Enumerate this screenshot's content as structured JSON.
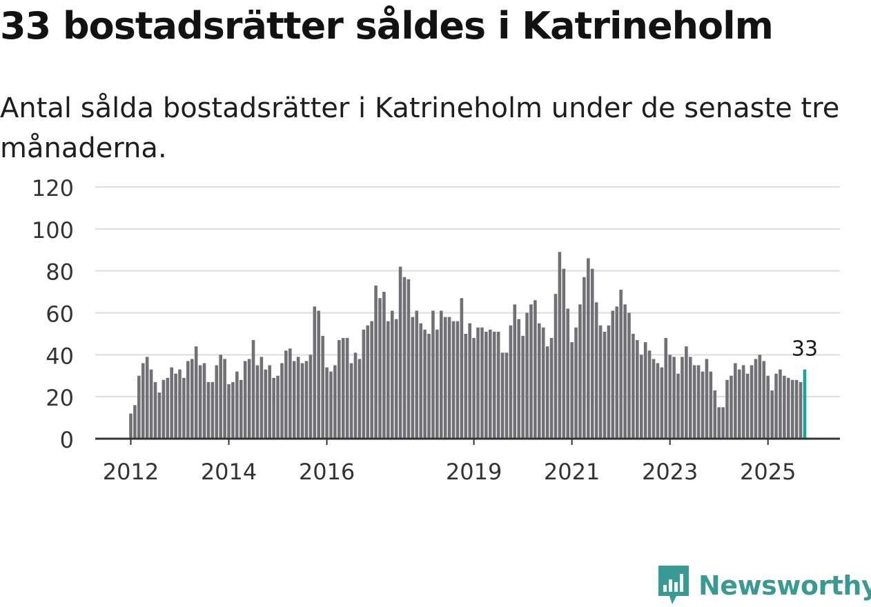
{
  "header": {
    "title": "33 bostadsrätter såldes i Katrineholm",
    "subtitle": "Antal sålda bostadsrätter i Katrineholm under de senaste tre månaderna."
  },
  "brand": {
    "name": "Newsworthy",
    "color": "#3a9a93"
  },
  "colors": {
    "bar": "#707075",
    "highlight": "#1aa39a",
    "grid": "#dddddd",
    "axis": "#333333",
    "text": "#333333"
  },
  "chart_data": {
    "type": "bar",
    "title": "33 bostadsrätter såldes i Katrineholm",
    "subtitle": "Antal sålda bostadsrätter i Katrineholm under de senaste tre månaderna.",
    "xlabel": "",
    "ylabel": "",
    "ylim": [
      0,
      120
    ],
    "yticks": [
      0,
      20,
      40,
      60,
      80,
      100,
      120
    ],
    "grid": true,
    "start": "2012-01",
    "xtick_labels": [
      {
        "label": "2012",
        "index": 0
      },
      {
        "label": "2014",
        "index": 24
      },
      {
        "label": "2016",
        "index": 48
      },
      {
        "label": "2019",
        "index": 84
      },
      {
        "label": "2021",
        "index": 108
      },
      {
        "label": "2023",
        "index": 132
      },
      {
        "label": "2025",
        "index": 156
      }
    ],
    "highlight_index": 165,
    "highlight_label": "33",
    "values": [
      12,
      16,
      30,
      36,
      39,
      33,
      27,
      22,
      28,
      29,
      34,
      31,
      33,
      29,
      37,
      38,
      44,
      35,
      36,
      27,
      27,
      35,
      40,
      38,
      26,
      27,
      32,
      28,
      37,
      38,
      47,
      35,
      39,
      33,
      35,
      29,
      30,
      36,
      42,
      43,
      37,
      39,
      36,
      37,
      40,
      63,
      61,
      49,
      34,
      32,
      35,
      47,
      48,
      48,
      36,
      41,
      38,
      52,
      54,
      56,
      73,
      67,
      70,
      56,
      61,
      57,
      82,
      77,
      76,
      58,
      61,
      55,
      52,
      50,
      61,
      52,
      61,
      58,
      58,
      56,
      56,
      67,
      50,
      55,
      48,
      53,
      53,
      51,
      52,
      51,
      51,
      41,
      41,
      54,
      64,
      57,
      49,
      60,
      64,
      66,
      55,
      53,
      44,
      48,
      69,
      89,
      81,
      62,
      46,
      53,
      64,
      77,
      86,
      81,
      65,
      54,
      51,
      54,
      61,
      63,
      71,
      64,
      60,
      50,
      47,
      40,
      46,
      42,
      38,
      36,
      34,
      48,
      40,
      39,
      31,
      39,
      44,
      39,
      35,
      35,
      32,
      38,
      32,
      23,
      15,
      15,
      28,
      30,
      36,
      33,
      35,
      31,
      35,
      38,
      40,
      37,
      30,
      23,
      31,
      33,
      30,
      29,
      28,
      28,
      27,
      33
    ]
  }
}
